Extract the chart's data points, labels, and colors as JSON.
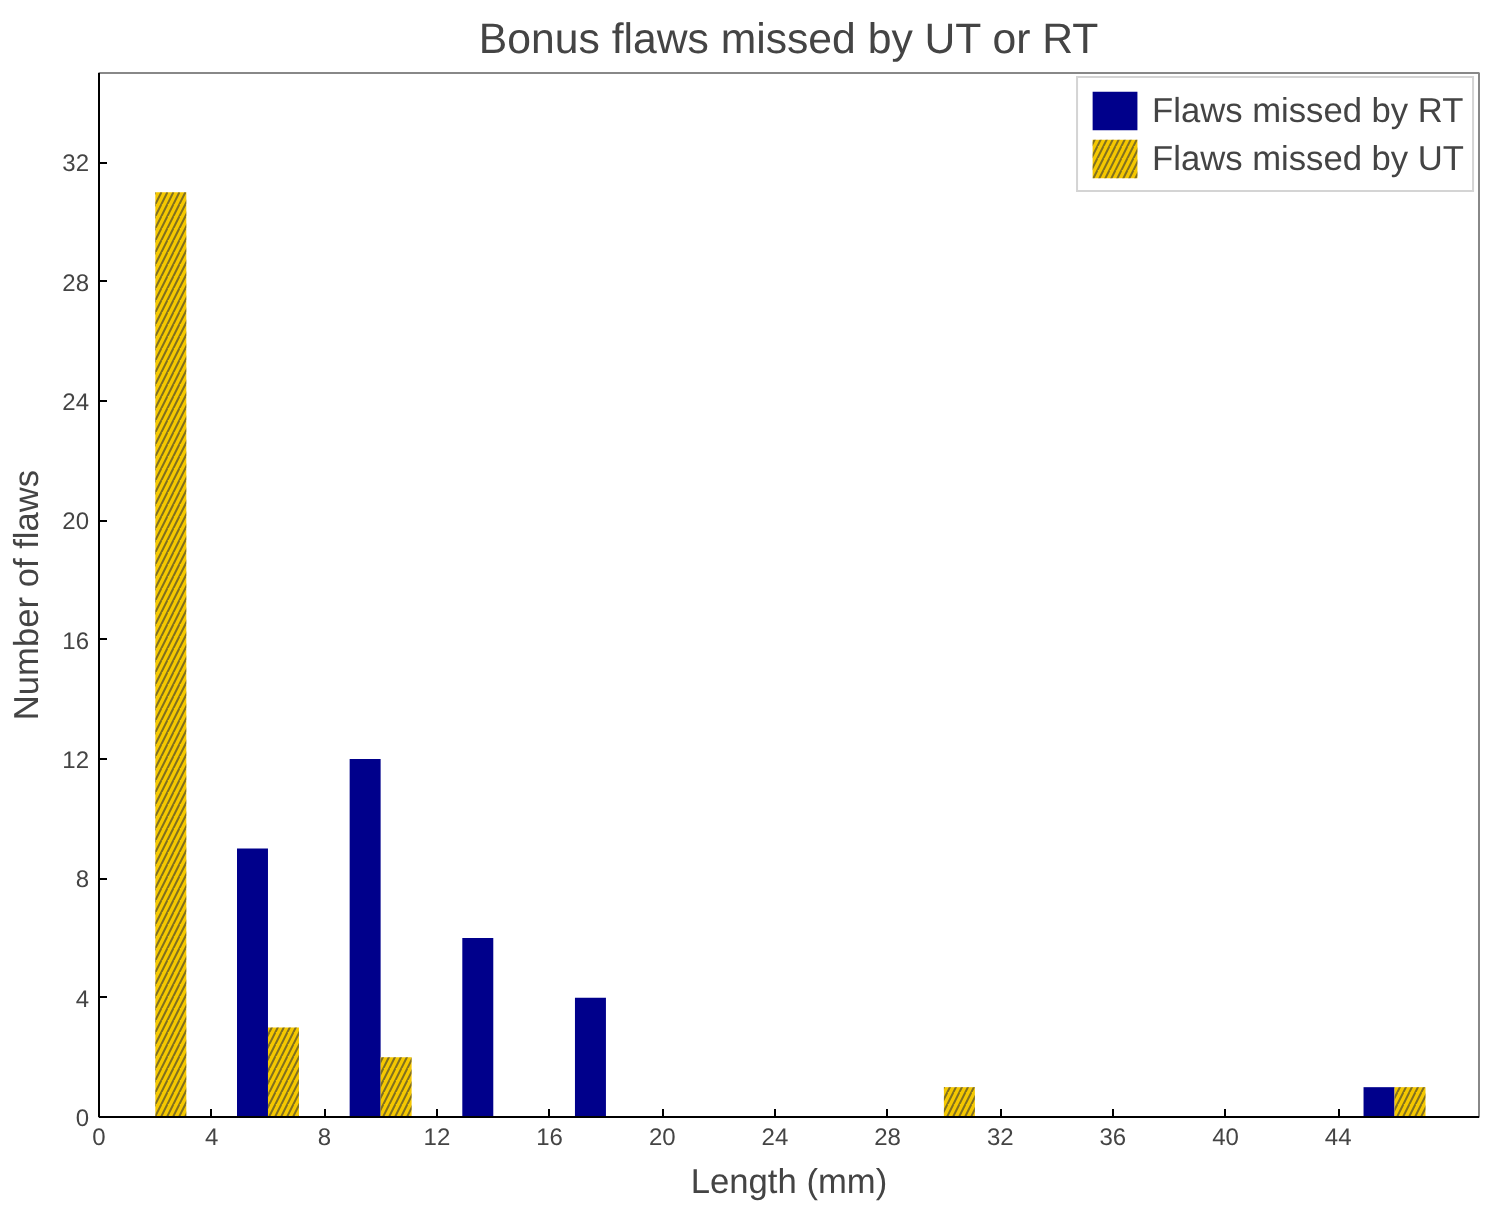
{
  "chart_data": {
    "type": "bar",
    "title": "Bonus flaws missed by UT or RT",
    "xlabel": "Length (mm)",
    "ylabel": "Number of flaws",
    "x": [
      2,
      6,
      10,
      14,
      18,
      22,
      26,
      30,
      34,
      38,
      42,
      46
    ],
    "series": [
      {
        "name": "Flaws missed by RT",
        "color": "#00008b",
        "values": [
          0,
          9,
          12,
          6,
          4,
          0,
          0,
          0,
          0,
          0,
          0,
          1
        ]
      },
      {
        "name": "Flaws missed by UT",
        "color": "#f5c800",
        "values": [
          31,
          3,
          2,
          0,
          0,
          0,
          0,
          1,
          0,
          0,
          0,
          1
        ]
      }
    ],
    "xlim": [
      0,
      49
    ],
    "xticks": [
      0,
      4,
      8,
      12,
      16,
      20,
      24,
      28,
      32,
      36,
      40,
      44
    ],
    "ylim": [
      0,
      35
    ],
    "yticks": [
      0,
      4,
      8,
      12,
      16,
      20,
      24,
      28,
      32
    ],
    "grid": false,
    "legend": "top right"
  }
}
